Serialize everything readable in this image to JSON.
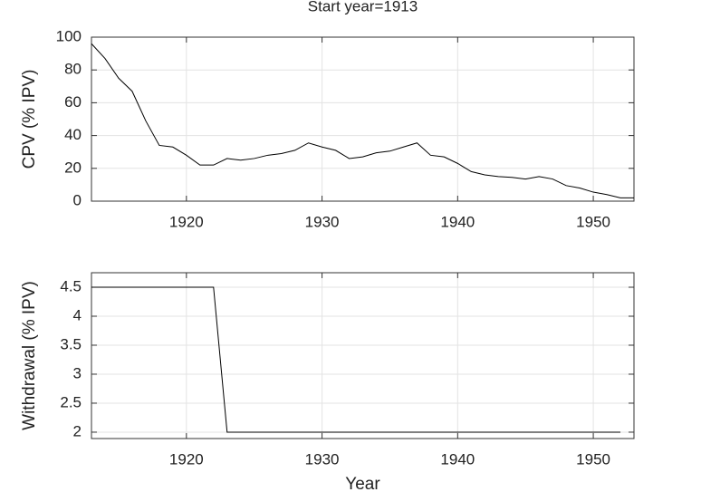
{
  "chart_data": [
    {
      "type": "line",
      "title": "Start year=1913",
      "ylabel": "CPV (% IPV)",
      "x": [
        1913,
        1914,
        1915,
        1916,
        1917,
        1918,
        1919,
        1920,
        1921,
        1922,
        1923,
        1924,
        1925,
        1926,
        1927,
        1928,
        1929,
        1930,
        1931,
        1932,
        1933,
        1934,
        1935,
        1936,
        1937,
        1938,
        1939,
        1940,
        1941,
        1942,
        1943,
        1944,
        1945,
        1946,
        1947,
        1948,
        1949,
        1950,
        1951,
        1952,
        1953
      ],
      "series": [
        {
          "color": "#000000",
          "values": [
            96,
            87,
            75,
            67,
            49,
            34,
            33,
            28,
            22,
            22,
            26,
            25,
            26,
            28,
            29,
            31,
            35.5,
            33,
            31,
            26,
            27,
            29.5,
            30.5,
            33,
            35.5,
            28,
            27,
            23,
            18,
            16,
            15,
            14.5,
            13.5,
            15,
            13.5,
            9.5,
            8,
            5.5,
            4,
            2,
            2
          ]
        }
      ],
      "xlim": [
        1913,
        1953
      ],
      "xticks": [
        1920,
        1930,
        1940,
        1950
      ],
      "ylim": [
        0,
        100
      ],
      "yticks": [
        0,
        20,
        40,
        60,
        80,
        100
      ],
      "grid": true
    },
    {
      "type": "line",
      "ylabel": "Withdrawal (% IPV)",
      "xlabel": "Year",
      "x": [
        1913,
        1914,
        1915,
        1916,
        1917,
        1918,
        1919,
        1920,
        1921,
        1922,
        1923,
        1924,
        1925,
        1926,
        1927,
        1928,
        1929,
        1930,
        1931,
        1932,
        1933,
        1934,
        1935,
        1936,
        1937,
        1938,
        1939,
        1940,
        1941,
        1942,
        1943,
        1944,
        1945,
        1946,
        1947,
        1948,
        1949,
        1950,
        1951,
        1952
      ],
      "series": [
        {
          "color": "#000000",
          "values": [
            4.5,
            4.5,
            4.5,
            4.5,
            4.5,
            4.5,
            4.5,
            4.5,
            4.5,
            4.5,
            2,
            2,
            2,
            2,
            2,
            2,
            2,
            2,
            2,
            2,
            2,
            2,
            2,
            2,
            2,
            2,
            2,
            2,
            2,
            2,
            2,
            2,
            2,
            2,
            2,
            2,
            2,
            2,
            2,
            2
          ]
        }
      ],
      "xlim": [
        1913,
        1953
      ],
      "xticks": [
        1920,
        1930,
        1940,
        1950
      ],
      "ylim": [
        1.89,
        4.75
      ],
      "yticks": [
        2,
        2.5,
        3,
        3.5,
        4,
        4.5
      ],
      "grid": true
    }
  ]
}
